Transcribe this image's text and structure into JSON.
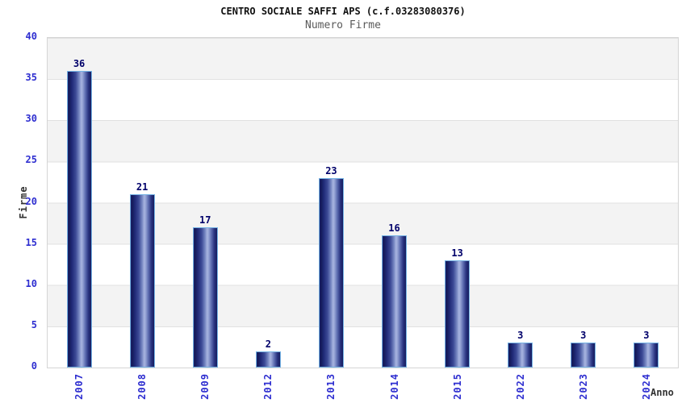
{
  "chart_data": {
    "type": "bar",
    "title": "CENTRO SOCIALE SAFFI APS (c.f.03283080376)",
    "subtitle": "Numero Firme",
    "xlabel": "Anno",
    "ylabel": "Firme",
    "categories": [
      "2007",
      "2008",
      "2009",
      "2012",
      "2013",
      "2014",
      "2015",
      "2022",
      "2023",
      "2024"
    ],
    "values": [
      36,
      21,
      17,
      2,
      23,
      16,
      13,
      3,
      3,
      3
    ],
    "ylim": [
      0,
      40
    ],
    "y_ticks": [
      0,
      5,
      10,
      15,
      20,
      25,
      30,
      35,
      40
    ],
    "grid": "horizontal alternating bands every 5 units, gray over white",
    "legend": "none",
    "colors": {
      "title": "#111111",
      "subtitle": "#5a5a5a",
      "tick_label_blue": "#2e2ed0",
      "axis_title": "#333333",
      "value_label": "#00006a",
      "bar_dark": "#161c5e",
      "bar_highlight": "#a8b4e0",
      "bar_border": "#74b2e4",
      "band_gray": "#f3f3f3",
      "band_white": "#ffffff",
      "plot_border": "#d5d5d5",
      "background": "#ffffff"
    }
  }
}
